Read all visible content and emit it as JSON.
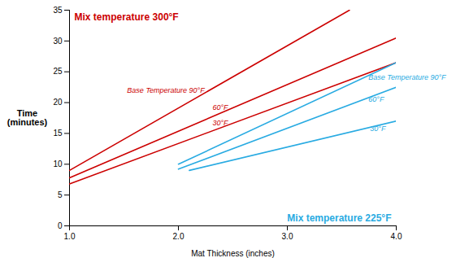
{
  "chart_data": {
    "type": "line",
    "xlabel": "Mat Thickness (inches)",
    "ylabel": "Time\n(minutes)",
    "xlim": [
      1,
      4
    ],
    "ylim": [
      0,
      35
    ],
    "xticks": [
      1,
      2,
      3,
      4
    ],
    "yticks": [
      0,
      5,
      10,
      15,
      20,
      25,
      30,
      35
    ],
    "grid": false,
    "annotations": [
      {
        "text": "Mix temperature 300°F",
        "color": "#CC0000"
      },
      {
        "text": "Mix temperature 225°F",
        "color": "#29ABE2"
      }
    ],
    "series": [
      {
        "name": "Base Temperature 90°F",
        "color": "#CC0000",
        "x": [
          1,
          3.57
        ],
        "values": [
          9.0,
          35.0
        ]
      },
      {
        "name": "60°F",
        "color": "#CC0000",
        "x": [
          1,
          4
        ],
        "values": [
          7.8,
          30.5
        ]
      },
      {
        "name": "30°F",
        "color": "#CC0000",
        "x": [
          1,
          4
        ],
        "values": [
          6.8,
          26.5
        ]
      },
      {
        "name": "Base Temperature 90°F",
        "color": "#29ABE2",
        "x": [
          2.0,
          4
        ],
        "values": [
          10.0,
          26.5
        ]
      },
      {
        "name": "60°F",
        "color": "#29ABE2",
        "x": [
          2.0,
          4
        ],
        "values": [
          9.2,
          22.5
        ]
      },
      {
        "name": "30°F",
        "color": "#29ABE2",
        "x": [
          2.1,
          4
        ],
        "values": [
          9.0,
          17.0
        ]
      }
    ]
  }
}
